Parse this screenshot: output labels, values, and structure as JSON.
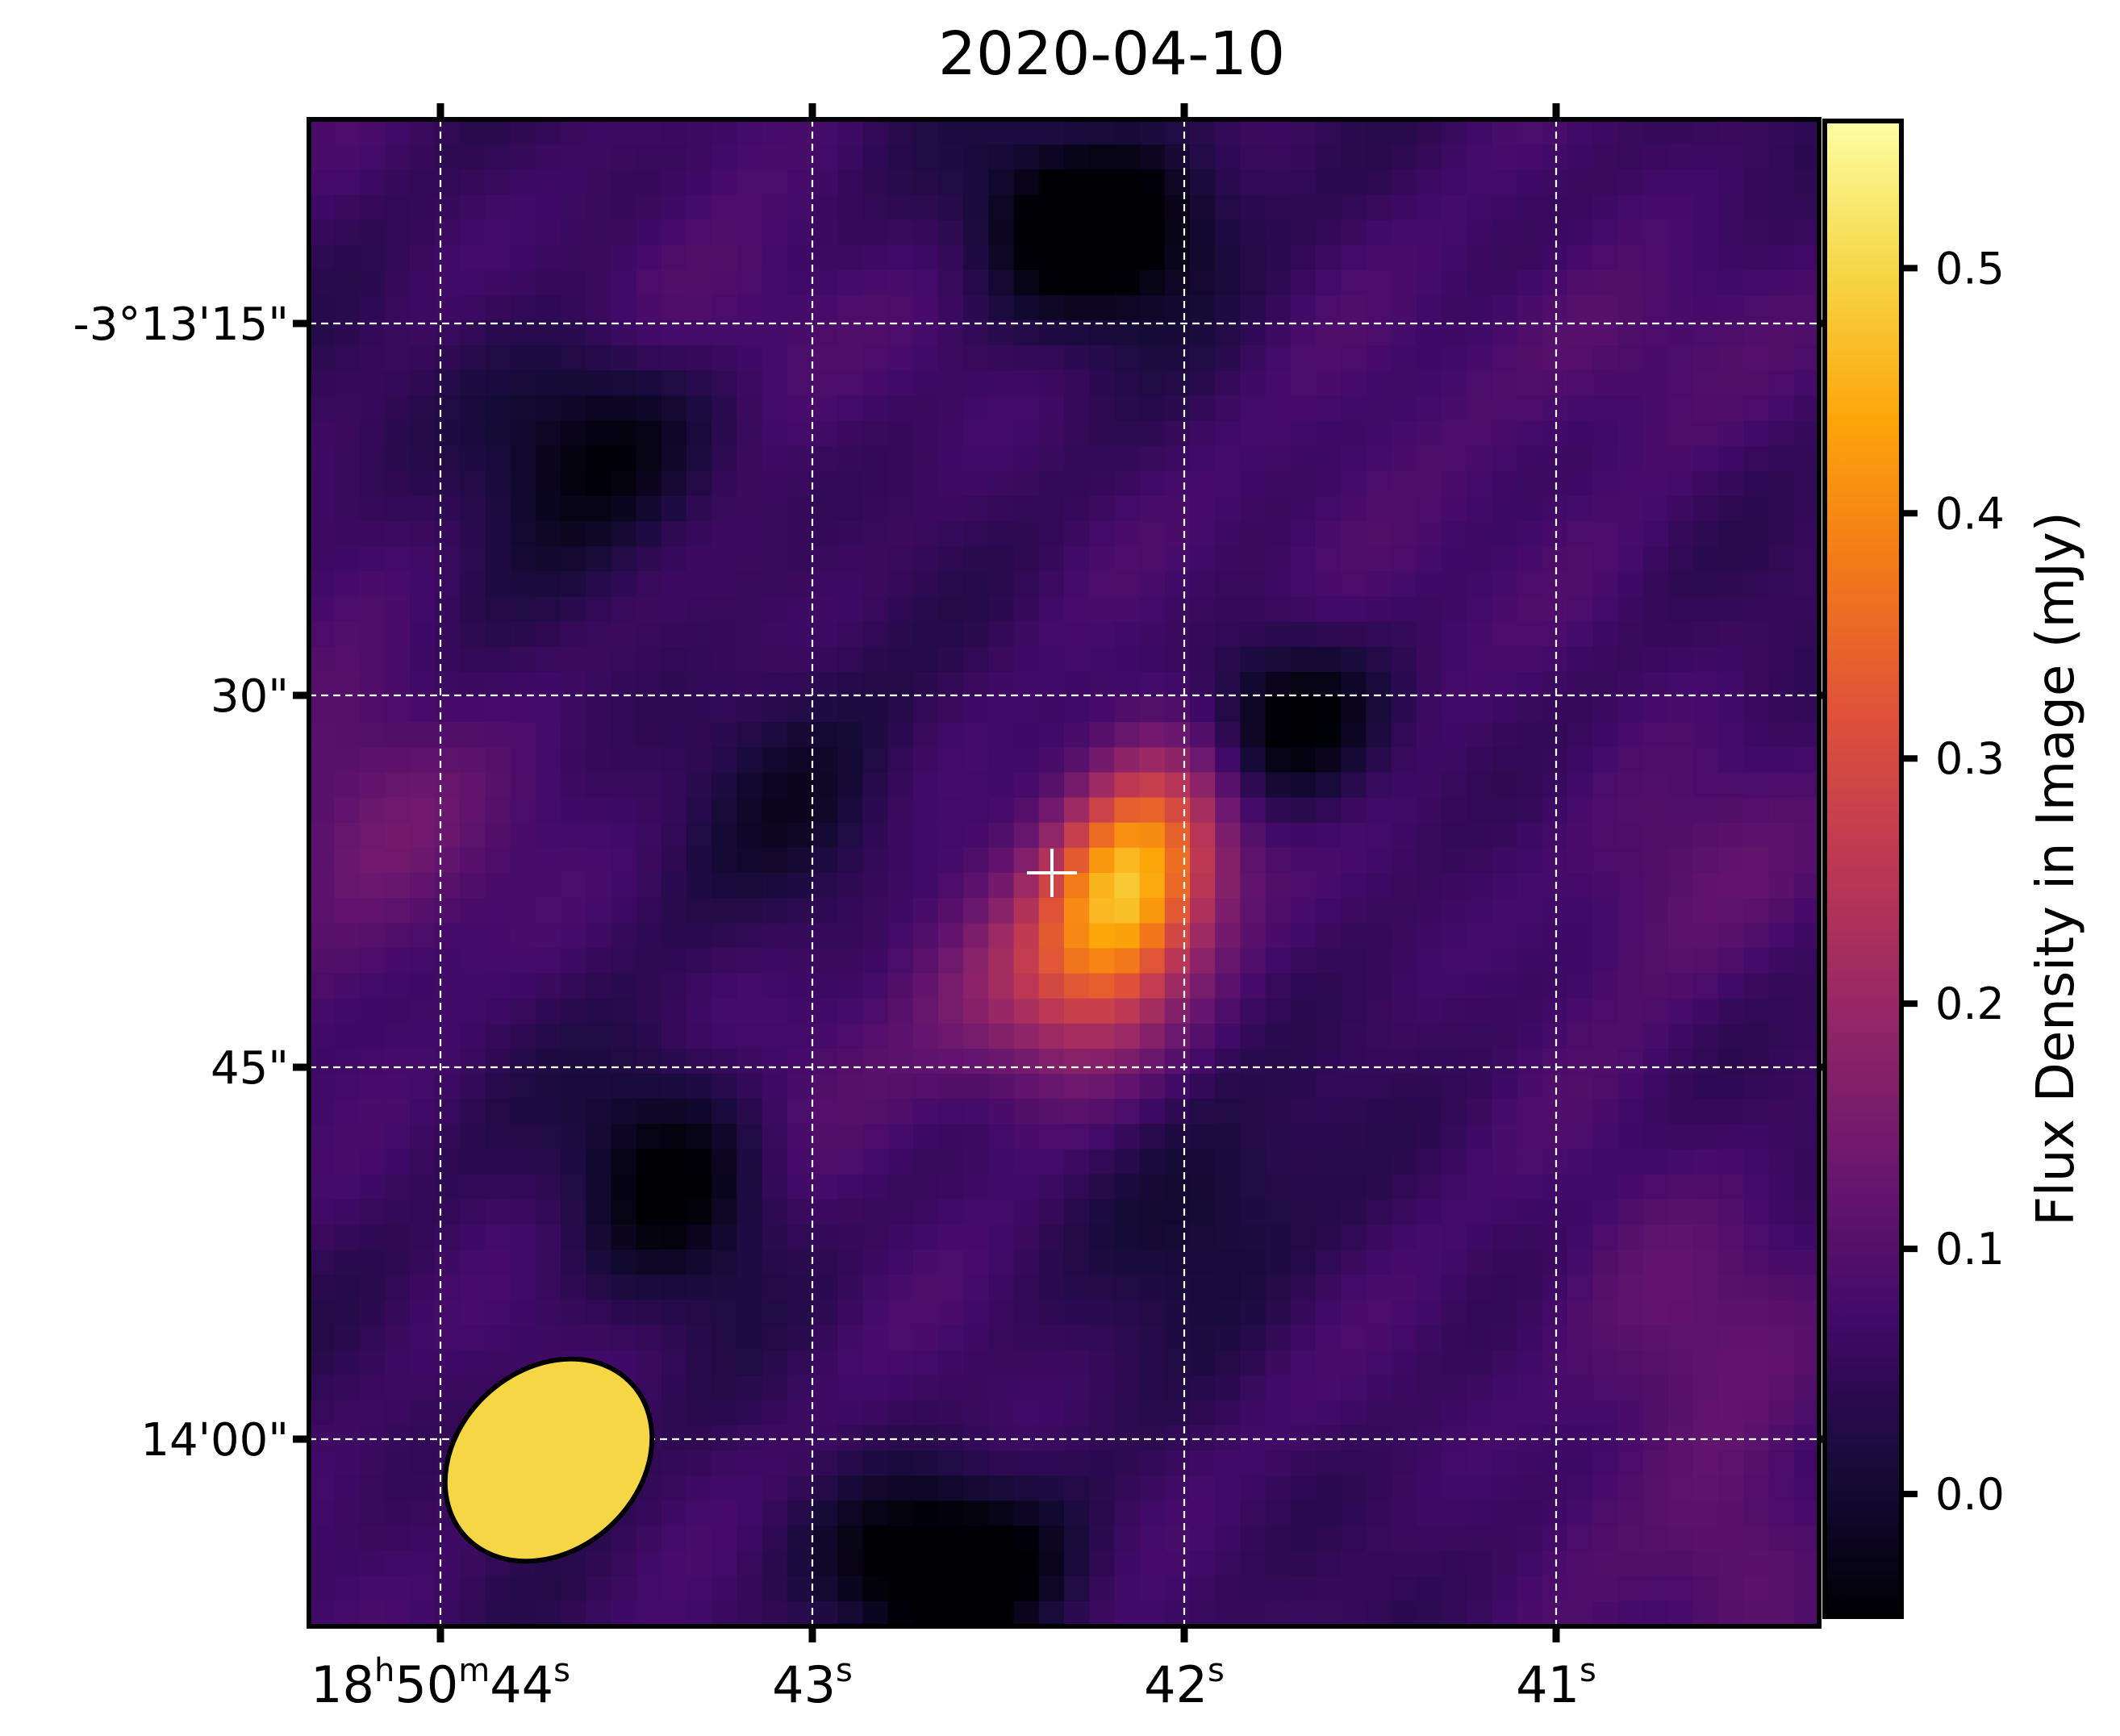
{
  "chart_data": {
    "type": "heatmap",
    "title": "2020-04-10",
    "colormap": "inferno",
    "colorbar": {
      "label": "Flux Density in Image (mJy)",
      "range": [
        -0.05,
        0.56
      ],
      "ticks": [
        0.0,
        0.1,
        0.2,
        0.3,
        0.4,
        0.5
      ],
      "tick_labels": [
        "0.0",
        "0.1",
        "0.2",
        "0.3",
        "0.4",
        "0.5"
      ]
    },
    "x_axis": {
      "tick_labels": [
        {
          "main": "18",
          "sup1": "h",
          "mid": "50",
          "sup2": "m",
          "end": "44",
          "sup3": "s"
        },
        {
          "main": "43",
          "sup": "s"
        },
        {
          "main": "42",
          "sup": "s"
        },
        {
          "main": "41",
          "sup": "s"
        }
      ]
    },
    "y_axis": {
      "tick_labels": [
        "-3°13'15\"",
        "30\"",
        "45\"",
        "14'00\""
      ]
    },
    "grid": true,
    "grid_style": "dashed-white",
    "source": {
      "peak_mJy": 0.55,
      "marker": "cross",
      "colors": {
        "marker": "#ffffff"
      }
    },
    "beam": {
      "shape": "ellipse",
      "color": "#f5d746",
      "edge": "#000000",
      "position": "bottom-left"
    }
  }
}
